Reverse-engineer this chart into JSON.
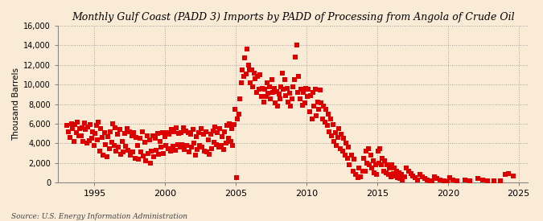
{
  "title": "Monthly Gulf Coast (PADD 3) Imports by PADD of Processing from Angola of Crude Oil",
  "ylabel": "Thousand Barrels",
  "source": "Source: U.S. Energy Information Administration",
  "background_color": "#faebd7",
  "plot_background_color": "#faebd7",
  "marker_color": "#dd0000",
  "marker": "s",
  "marker_size": 16,
  "grid_color": "#999999",
  "grid_style": ":",
  "ylim": [
    0,
    16000
  ],
  "yticks": [
    0,
    2000,
    4000,
    6000,
    8000,
    10000,
    12000,
    14000,
    16000
  ],
  "ytick_labels": [
    "0",
    "2,000",
    "4,000",
    "6,000",
    "8,000",
    "10,000",
    "12,000",
    "14,000",
    "16,000"
  ],
  "xtick_years": [
    1995,
    2000,
    2005,
    2010,
    2015,
    2020,
    2025
  ],
  "data": [
    [
      1993,
      1,
      5800
    ],
    [
      1993,
      2,
      5200
    ],
    [
      1993,
      4,
      4600
    ],
    [
      1993,
      5,
      6000
    ],
    [
      1993,
      6,
      5500
    ],
    [
      1993,
      7,
      4200
    ],
    [
      1993,
      8,
      5900
    ],
    [
      1993,
      9,
      5100
    ],
    [
      1993,
      10,
      6200
    ],
    [
      1993,
      11,
      4800
    ],
    [
      1993,
      12,
      5500
    ],
    [
      1994,
      1,
      4800
    ],
    [
      1994,
      2,
      5600
    ],
    [
      1994,
      3,
      4200
    ],
    [
      1994,
      4,
      6100
    ],
    [
      1994,
      5,
      5400
    ],
    [
      1994,
      6,
      4000
    ],
    [
      1994,
      7,
      5700
    ],
    [
      1994,
      8,
      4300
    ],
    [
      1994,
      9,
      5900
    ],
    [
      1994,
      10,
      4500
    ],
    [
      1994,
      11,
      5200
    ],
    [
      1994,
      12,
      3800
    ],
    [
      1995,
      1,
      5000
    ],
    [
      1995,
      2,
      5800
    ],
    [
      1995,
      3,
      4400
    ],
    [
      1995,
      4,
      6200
    ],
    [
      1995,
      5,
      3200
    ],
    [
      1995,
      6,
      5500
    ],
    [
      1995,
      7,
      4600
    ],
    [
      1995,
      8,
      2800
    ],
    [
      1995,
      9,
      5100
    ],
    [
      1995,
      10,
      3900
    ],
    [
      1995,
      11,
      2600
    ],
    [
      1995,
      12,
      4700
    ],
    [
      1996,
      1,
      3500
    ],
    [
      1996,
      2,
      5200
    ],
    [
      1996,
      3,
      4100
    ],
    [
      1996,
      4,
      6000
    ],
    [
      1996,
      5,
      3800
    ],
    [
      1996,
      6,
      5600
    ],
    [
      1996,
      7,
      3200
    ],
    [
      1996,
      8,
      4900
    ],
    [
      1996,
      9,
      3600
    ],
    [
      1996,
      10,
      5400
    ],
    [
      1996,
      11,
      2900
    ],
    [
      1996,
      12,
      4200
    ],
    [
      1997,
      1,
      3100
    ],
    [
      1997,
      2,
      5000
    ],
    [
      1997,
      3,
      3700
    ],
    [
      1997,
      4,
      5500
    ],
    [
      1997,
      5,
      3300
    ],
    [
      1997,
      6,
      5200
    ],
    [
      1997,
      7,
      2800
    ],
    [
      1997,
      8,
      4800
    ],
    [
      1997,
      9,
      3100
    ],
    [
      1997,
      10,
      5100
    ],
    [
      1997,
      11,
      2500
    ],
    [
      1997,
      12,
      4600
    ],
    [
      1998,
      1,
      3800
    ],
    [
      1998,
      2,
      2400
    ],
    [
      1998,
      3,
      4500
    ],
    [
      1998,
      4,
      3100
    ],
    [
      1998,
      5,
      5200
    ],
    [
      1998,
      6,
      2700
    ],
    [
      1998,
      7,
      4100
    ],
    [
      1998,
      8,
      2200
    ],
    [
      1998,
      9,
      4800
    ],
    [
      1998,
      10,
      3000
    ],
    [
      1998,
      11,
      4400
    ],
    [
      1998,
      12,
      2000
    ],
    [
      1999,
      1,
      3200
    ],
    [
      1999,
      2,
      4800
    ],
    [
      1999,
      3,
      2600
    ],
    [
      1999,
      4,
      4500
    ],
    [
      1999,
      5,
      3300
    ],
    [
      1999,
      6,
      5000
    ],
    [
      1999,
      7,
      2900
    ],
    [
      1999,
      8,
      4200
    ],
    [
      1999,
      9,
      3600
    ],
    [
      1999,
      10,
      5100
    ],
    [
      1999,
      11,
      3000
    ],
    [
      1999,
      12,
      4700
    ],
    [
      2000,
      1,
      3800
    ],
    [
      2000,
      2,
      5100
    ],
    [
      2000,
      3,
      3500
    ],
    [
      2000,
      4,
      4900
    ],
    [
      2000,
      5,
      3200
    ],
    [
      2000,
      6,
      5400
    ],
    [
      2000,
      7,
      3700
    ],
    [
      2000,
      8,
      5200
    ],
    [
      2000,
      9,
      3300
    ],
    [
      2000,
      10,
      5600
    ],
    [
      2000,
      11,
      3900
    ],
    [
      2000,
      12,
      5000
    ],
    [
      2001,
      1,
      3600
    ],
    [
      2001,
      2,
      5100
    ],
    [
      2001,
      3,
      3900
    ],
    [
      2001,
      4,
      5600
    ],
    [
      2001,
      5,
      3400
    ],
    [
      2001,
      6,
      5300
    ],
    [
      2001,
      7,
      3800
    ],
    [
      2001,
      8,
      5100
    ],
    [
      2001,
      9,
      3100
    ],
    [
      2001,
      10,
      4900
    ],
    [
      2001,
      11,
      3600
    ],
    [
      2001,
      12,
      5400
    ],
    [
      2002,
      1,
      4000
    ],
    [
      2002,
      2,
      2800
    ],
    [
      2002,
      3,
      4700
    ],
    [
      2002,
      4,
      3400
    ],
    [
      2002,
      5,
      5100
    ],
    [
      2002,
      6,
      3800
    ],
    [
      2002,
      7,
      5500
    ],
    [
      2002,
      8,
      3600
    ],
    [
      2002,
      9,
      4900
    ],
    [
      2002,
      10,
      3200
    ],
    [
      2002,
      11,
      5200
    ],
    [
      2002,
      12,
      3100
    ],
    [
      2003,
      1,
      4400
    ],
    [
      2003,
      2,
      2900
    ],
    [
      2003,
      3,
      4900
    ],
    [
      2003,
      4,
      3500
    ],
    [
      2003,
      5,
      5300
    ],
    [
      2003,
      6,
      4100
    ],
    [
      2003,
      7,
      5700
    ],
    [
      2003,
      8,
      3900
    ],
    [
      2003,
      9,
      5100
    ],
    [
      2003,
      10,
      3600
    ],
    [
      2003,
      11,
      5500
    ],
    [
      2003,
      12,
      3800
    ],
    [
      2004,
      1,
      4700
    ],
    [
      2004,
      2,
      3400
    ],
    [
      2004,
      3,
      5200
    ],
    [
      2004,
      4,
      4000
    ],
    [
      2004,
      5,
      5800
    ],
    [
      2004,
      6,
      4500
    ],
    [
      2004,
      7,
      6000
    ],
    [
      2004,
      8,
      4200
    ],
    [
      2004,
      9,
      5500
    ],
    [
      2004,
      10,
      3800
    ],
    [
      2004,
      11,
      5900
    ],
    [
      2004,
      12,
      7500
    ],
    [
      2005,
      1,
      500
    ],
    [
      2005,
      2,
      6500
    ],
    [
      2005,
      3,
      7000
    ],
    [
      2005,
      4,
      8500
    ],
    [
      2005,
      5,
      10200
    ],
    [
      2005,
      6,
      11500
    ],
    [
      2005,
      7,
      10800
    ],
    [
      2005,
      8,
      12700
    ],
    [
      2005,
      9,
      11100
    ],
    [
      2005,
      10,
      13600
    ],
    [
      2005,
      11,
      12000
    ],
    [
      2005,
      12,
      11500
    ],
    [
      2006,
      1,
      10200
    ],
    [
      2006,
      2,
      11500
    ],
    [
      2006,
      3,
      9800
    ],
    [
      2006,
      4,
      11200
    ],
    [
      2006,
      5,
      10600
    ],
    [
      2006,
      6,
      9200
    ],
    [
      2006,
      7,
      10800
    ],
    [
      2006,
      8,
      9500
    ],
    [
      2006,
      9,
      11000
    ],
    [
      2006,
      10,
      8800
    ],
    [
      2006,
      11,
      9600
    ],
    [
      2006,
      12,
      8200
    ],
    [
      2007,
      1,
      9500
    ],
    [
      2007,
      2,
      8800
    ],
    [
      2007,
      3,
      10200
    ],
    [
      2007,
      4,
      9100
    ],
    [
      2007,
      5,
      9800
    ],
    [
      2007,
      6,
      8500
    ],
    [
      2007,
      7,
      10500
    ],
    [
      2007,
      8,
      9200
    ],
    [
      2007,
      9,
      9600
    ],
    [
      2007,
      10,
      8100
    ],
    [
      2007,
      11,
      9300
    ],
    [
      2007,
      12,
      7800
    ],
    [
      2008,
      1,
      9000
    ],
    [
      2008,
      2,
      8500
    ],
    [
      2008,
      3,
      9800
    ],
    [
      2008,
      4,
      11200
    ],
    [
      2008,
      5,
      9500
    ],
    [
      2008,
      6,
      10500
    ],
    [
      2008,
      7,
      8900
    ],
    [
      2008,
      8,
      9600
    ],
    [
      2008,
      9,
      8200
    ],
    [
      2008,
      10,
      9100
    ],
    [
      2008,
      11,
      7800
    ],
    [
      2008,
      12,
      8500
    ],
    [
      2009,
      1,
      9800
    ],
    [
      2009,
      2,
      10500
    ],
    [
      2009,
      3,
      12800
    ],
    [
      2009,
      4,
      14000
    ],
    [
      2009,
      5,
      9200
    ],
    [
      2009,
      6,
      10800
    ],
    [
      2009,
      7,
      8500
    ],
    [
      2009,
      8,
      9500
    ],
    [
      2009,
      9,
      7900
    ],
    [
      2009,
      10,
      9200
    ],
    [
      2009,
      11,
      8100
    ],
    [
      2009,
      12,
      9600
    ],
    [
      2010,
      1,
      8800
    ],
    [
      2010,
      2,
      9500
    ],
    [
      2010,
      3,
      7200
    ],
    [
      2010,
      4,
      8900
    ],
    [
      2010,
      5,
      6500
    ],
    [
      2010,
      6,
      9200
    ],
    [
      2010,
      7,
      7800
    ],
    [
      2010,
      8,
      9500
    ],
    [
      2010,
      9,
      6800
    ],
    [
      2010,
      10,
      8200
    ],
    [
      2010,
      11,
      7500
    ],
    [
      2010,
      12,
      9400
    ],
    [
      2011,
      1,
      8100
    ],
    [
      2011,
      2,
      6500
    ],
    [
      2011,
      3,
      7800
    ],
    [
      2011,
      4,
      6200
    ],
    [
      2011,
      5,
      7500
    ],
    [
      2011,
      6,
      5800
    ],
    [
      2011,
      7,
      7000
    ],
    [
      2011,
      8,
      5200
    ],
    [
      2011,
      9,
      6500
    ],
    [
      2011,
      10,
      4800
    ],
    [
      2011,
      11,
      5900
    ],
    [
      2011,
      12,
      4200
    ],
    [
      2012,
      1,
      5100
    ],
    [
      2012,
      2,
      3800
    ],
    [
      2012,
      3,
      4600
    ],
    [
      2012,
      4,
      5500
    ],
    [
      2012,
      5,
      3500
    ],
    [
      2012,
      6,
      4900
    ],
    [
      2012,
      7,
      3200
    ],
    [
      2012,
      8,
      4500
    ],
    [
      2012,
      9,
      2800
    ],
    [
      2012,
      10,
      4000
    ],
    [
      2012,
      11,
      2500
    ],
    [
      2012,
      12,
      3600
    ],
    [
      2013,
      1,
      1800
    ],
    [
      2013,
      3,
      2800
    ],
    [
      2013,
      4,
      1200
    ],
    [
      2013,
      5,
      2400
    ],
    [
      2013,
      6,
      800
    ],
    [
      2013,
      8,
      500
    ],
    [
      2013,
      9,
      1500
    ],
    [
      2013,
      10,
      600
    ],
    [
      2013,
      12,
      1200
    ],
    [
      2014,
      1,
      2500
    ],
    [
      2014,
      2,
      1200
    ],
    [
      2014,
      3,
      3200
    ],
    [
      2014,
      4,
      2000
    ],
    [
      2014,
      5,
      3500
    ],
    [
      2014,
      6,
      1800
    ],
    [
      2014,
      7,
      2800
    ],
    [
      2014,
      8,
      1500
    ],
    [
      2014,
      9,
      2200
    ],
    [
      2014,
      10,
      1000
    ],
    [
      2014,
      11,
      1800
    ],
    [
      2014,
      12,
      800
    ],
    [
      2015,
      1,
      3200
    ],
    [
      2015,
      2,
      2000
    ],
    [
      2015,
      3,
      3500
    ],
    [
      2015,
      4,
      1800
    ],
    [
      2015,
      5,
      2500
    ],
    [
      2015,
      6,
      1200
    ],
    [
      2015,
      7,
      2200
    ],
    [
      2015,
      8,
      1000
    ],
    [
      2015,
      9,
      1800
    ],
    [
      2015,
      10,
      800
    ],
    [
      2015,
      11,
      1500
    ],
    [
      2015,
      12,
      600
    ],
    [
      2016,
      1,
      1800
    ],
    [
      2016,
      2,
      900
    ],
    [
      2016,
      3,
      1500
    ],
    [
      2016,
      4,
      700
    ],
    [
      2016,
      5,
      1200
    ],
    [
      2016,
      6,
      500
    ],
    [
      2016,
      7,
      1000
    ],
    [
      2016,
      8,
      400
    ],
    [
      2016,
      9,
      800
    ],
    [
      2016,
      10,
      300
    ],
    [
      2016,
      12,
      600
    ],
    [
      2017,
      1,
      1500
    ],
    [
      2017,
      3,
      1200
    ],
    [
      2017,
      5,
      900
    ],
    [
      2017,
      7,
      700
    ],
    [
      2017,
      9,
      500
    ],
    [
      2017,
      11,
      300
    ],
    [
      2018,
      1,
      800
    ],
    [
      2018,
      3,
      600
    ],
    [
      2018,
      5,
      400
    ],
    [
      2018,
      7,
      300
    ],
    [
      2018,
      9,
      200
    ],
    [
      2018,
      11,
      150
    ],
    [
      2019,
      1,
      600
    ],
    [
      2019,
      3,
      400
    ],
    [
      2019,
      6,
      300
    ],
    [
      2019,
      9,
      200
    ],
    [
      2019,
      12,
      100
    ],
    [
      2020,
      2,
      500
    ],
    [
      2020,
      5,
      300
    ],
    [
      2020,
      8,
      200
    ],
    [
      2021,
      3,
      300
    ],
    [
      2021,
      7,
      200
    ],
    [
      2022,
      2,
      400
    ],
    [
      2022,
      6,
      300
    ],
    [
      2022,
      10,
      200
    ],
    [
      2023,
      4,
      200
    ],
    [
      2023,
      9,
      150
    ],
    [
      2024,
      1,
      800
    ],
    [
      2024,
      4,
      900
    ],
    [
      2024,
      8,
      700
    ]
  ]
}
